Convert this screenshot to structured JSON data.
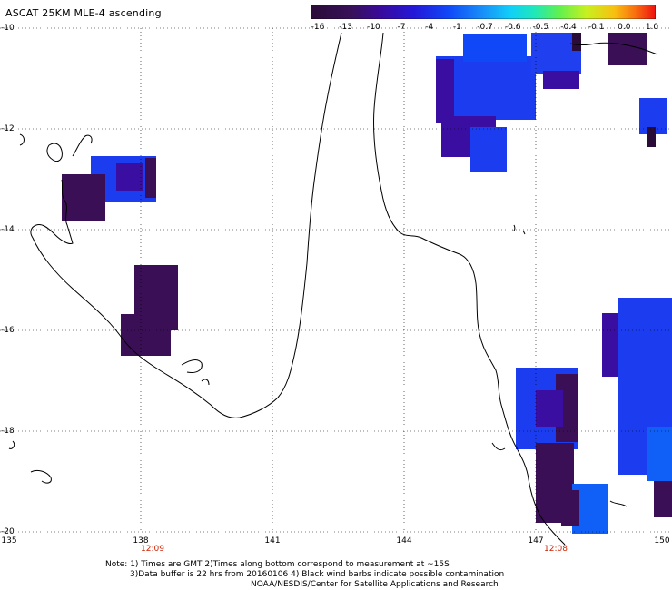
{
  "title": "ASCAT 25KM MLE-4 ascending",
  "colorbar": {
    "ticks": [
      "-16",
      "-13",
      "-10",
      "-7",
      "-4",
      "-1",
      "-0.7",
      "-0.6",
      "-0.5",
      "-0.4",
      "-0.1",
      "0.0",
      "1.0"
    ],
    "colors": [
      "#2a0c38",
      "#38105a",
      "#3a0a9a",
      "#2418d8",
      "#1048f8",
      "#1890f8",
      "#10d0f8",
      "#20e8b8",
      "#60f050",
      "#c8f020",
      "#f8c010",
      "#f87010",
      "#f01010"
    ]
  },
  "axes": {
    "lat_labels": [
      "-10",
      "-12",
      "-14",
      "-16",
      "-18",
      "-20"
    ],
    "lon_labels": [
      "135",
      "138",
      "141",
      "144",
      "147",
      "150"
    ]
  },
  "times": [
    "12:09",
    "12:08"
  ],
  "notes": {
    "line1": "Note: 1) Times are GMT 2)Times along bottom correspond to measurement at ~15S",
    "line2": "3)Data buffer is 22 hrs from 20160106 4) Black wind barbs indicate possible contamination",
    "line3": "NOAA/NESDIS/Center for Satellite Applications and Research"
  },
  "colors": {
    "deep_purple": "#3a0f55",
    "indigo": "#3a0ea0",
    "blue": "#1c3cf0",
    "light_blue": "#1060f8"
  }
}
